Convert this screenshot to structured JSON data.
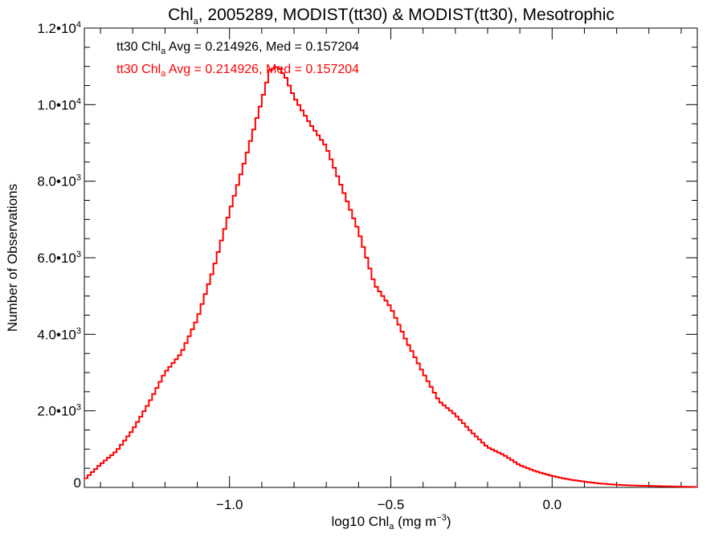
{
  "chart_data": {
    "type": "step-histogram",
    "title": {
      "prefix": "Chl",
      "sub": "a",
      "suffix": ", 2005289, MODIST(tt30) & MODIST(tt30), Mesotrophic"
    },
    "xlabel": {
      "prefix": "log10 Chl",
      "sub": "a",
      "suffix": " (mg m",
      "sup": "−3",
      "end": ")"
    },
    "ylabel": "Number of Observations",
    "xlim": [
      -1.45,
      0.45
    ],
    "ylim": [
      0,
      12000
    ],
    "x_ticks": [
      {
        "value": -1.0,
        "label": "−1.0"
      },
      {
        "value": -0.5,
        "label": "−0.5"
      },
      {
        "value": 0.0,
        "label": "0.0"
      }
    ],
    "y_ticks": [
      {
        "value": 0,
        "mant": "0",
        "exp": ""
      },
      {
        "value": 2000,
        "mant": "2.0•10",
        "exp": "3"
      },
      {
        "value": 4000,
        "mant": "4.0•10",
        "exp": "3"
      },
      {
        "value": 6000,
        "mant": "6.0•10",
        "exp": "3"
      },
      {
        "value": 8000,
        "mant": "8.0•10",
        "exp": "3"
      },
      {
        "value": 10000,
        "mant": "1.0•10",
        "exp": "4"
      },
      {
        "value": 12000,
        "mant": "1.2•10",
        "exp": "4"
      }
    ],
    "legend": [
      {
        "prefix": "tt30 Chl",
        "sub": "a",
        "suffix": " Avg = 0.214926, Med = 0.157204",
        "color": "#000000"
      },
      {
        "prefix": "tt30 Chl",
        "sub": "a",
        "suffix": " Avg = 0.214926, Med = 0.157204",
        "color": "#ff0000"
      }
    ],
    "series": [
      {
        "color": "#ff0000",
        "x": [
          -1.45,
          -1.4,
          -1.35,
          -1.3,
          -1.25,
          -1.2,
          -1.15,
          -1.1,
          -1.05,
          -1.0,
          -0.95,
          -0.9,
          -0.875,
          -0.85,
          -0.825,
          -0.8,
          -0.75,
          -0.7,
          -0.65,
          -0.6,
          -0.55,
          -0.5,
          -0.45,
          -0.4,
          -0.35,
          -0.3,
          -0.25,
          -0.2,
          -0.15,
          -0.1,
          -0.05,
          0.0,
          0.05,
          0.1,
          0.15,
          0.2,
          0.25,
          0.3,
          0.35,
          0.4,
          0.45
        ],
        "y": [
          200,
          600,
          950,
          1500,
          2200,
          3000,
          3500,
          4400,
          5700,
          7200,
          8600,
          10100,
          10900,
          11000,
          10700,
          10200,
          9500,
          8900,
          7800,
          6700,
          5300,
          4700,
          3800,
          3000,
          2250,
          1900,
          1450,
          1050,
          850,
          580,
          420,
          300,
          210,
          150,
          100,
          70,
          50,
          40,
          28,
          20,
          10
        ]
      }
    ]
  }
}
